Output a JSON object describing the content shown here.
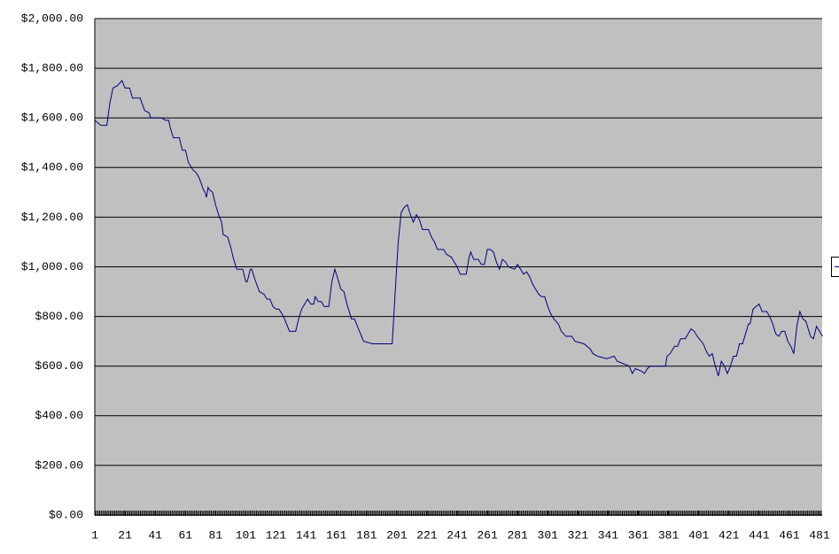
{
  "chart_data": {
    "type": "line",
    "x": [
      1,
      5,
      9,
      11,
      13,
      16,
      19,
      21,
      24,
      26,
      31,
      34,
      37,
      38,
      45,
      48,
      50,
      51,
      53,
      57,
      59,
      61,
      63,
      66,
      68,
      70,
      73,
      74,
      75,
      76,
      77,
      79,
      81,
      83,
      85,
      86,
      89,
      91,
      93,
      95,
      99,
      101,
      102,
      104,
      105,
      107,
      110,
      113,
      115,
      117,
      119,
      121,
      123,
      126,
      128,
      130,
      134,
      136,
      138,
      141,
      142,
      144,
      146,
      147,
      149,
      151,
      153,
      156,
      158,
      160,
      162,
      164,
      166,
      168,
      169,
      171,
      173,
      175,
      177,
      179,
      185,
      190,
      193,
      198,
      200,
      202,
      204,
      206,
      208,
      210,
      212,
      214,
      216,
      218,
      222,
      224,
      226,
      228,
      232,
      234,
      237,
      239,
      241,
      243,
      247,
      249,
      250,
      252,
      255,
      257,
      259,
      261,
      263,
      265,
      267,
      269,
      271,
      273,
      275,
      279,
      281,
      283,
      285,
      287,
      289,
      291,
      293,
      295,
      297,
      299,
      301,
      303,
      305,
      308,
      310,
      313,
      317,
      319,
      325,
      329,
      331,
      334,
      340,
      345,
      347,
      351,
      355,
      357,
      359,
      363,
      365,
      367,
      369,
      379,
      380,
      382,
      385,
      387,
      389,
      392,
      395,
      396,
      398,
      400,
      404,
      406,
      408,
      410,
      412,
      414,
      416,
      418,
      420,
      422,
      424,
      426,
      428,
      430,
      432,
      434,
      435,
      437,
      439,
      441,
      443,
      446,
      448,
      450,
      452,
      454,
      456,
      458,
      460,
      462,
      464,
      466,
      468,
      470,
      472,
      475,
      477,
      479,
      481,
      483
    ],
    "series": [
      {
        "color": "#000080",
        "values": [
          1590,
          1570,
          1570,
          1660,
          1720,
          1730,
          1750,
          1720,
          1720,
          1680,
          1680,
          1630,
          1620,
          1600,
          1600,
          1590,
          1590,
          1560,
          1520,
          1520,
          1470,
          1470,
          1420,
          1390,
          1380,
          1360,
          1310,
          1300,
          1280,
          1320,
          1310,
          1300,
          1250,
          1210,
          1180,
          1130,
          1120,
          1080,
          1030,
          990,
          990,
          940,
          940,
          990,
          990,
          950,
          900,
          890,
          870,
          870,
          840,
          830,
          830,
          800,
          770,
          740,
          740,
          790,
          830,
          860,
          870,
          850,
          850,
          880,
          860,
          860,
          840,
          840,
          940,
          990,
          950,
          910,
          900,
          850,
          830,
          790,
          790,
          760,
          730,
          700,
          690,
          690,
          690,
          690,
          900,
          1100,
          1220,
          1240,
          1250,
          1210,
          1180,
          1210,
          1190,
          1150,
          1150,
          1120,
          1100,
          1070,
          1070,
          1050,
          1040,
          1020,
          1000,
          970,
          970,
          1040,
          1060,
          1030,
          1030,
          1010,
          1010,
          1070,
          1070,
          1060,
          1020,
          990,
          1030,
          1020,
          1000,
          990,
          1010,
          990,
          970,
          980,
          960,
          930,
          910,
          890,
          880,
          880,
          840,
          810,
          790,
          770,
          740,
          720,
          720,
          700,
          690,
          670,
          650,
          640,
          630,
          640,
          620,
          610,
          600,
          570,
          590,
          580,
          570,
          590,
          600,
          600,
          640,
          650,
          680,
          680,
          710,
          710,
          740,
          750,
          740,
          720,
          690,
          660,
          640,
          650,
          600,
          560,
          620,
          600,
          570,
          600,
          640,
          640,
          690,
          690,
          730,
          770,
          770,
          830,
          840,
          850,
          820,
          820,
          800,
          770,
          730,
          720,
          740,
          740,
          700,
          680,
          650,
          760,
          820,
          790,
          780,
          720,
          710,
          760,
          740,
          720
        ]
      }
    ],
    "xlim": [
      1,
      483
    ],
    "xticks": [
      1,
      21,
      41,
      61,
      81,
      101,
      121,
      141,
      161,
      181,
      201,
      221,
      241,
      261,
      281,
      301,
      321,
      341,
      361,
      381,
      401,
      421,
      441,
      461,
      481
    ],
    "ylim": [
      0,
      2000
    ],
    "yticks": [
      {
        "value": 0,
        "label": "$0.00"
      },
      {
        "value": 200,
        "label": "$200.00"
      },
      {
        "value": 400,
        "label": "$400.00"
      },
      {
        "value": 600,
        "label": "$600.00"
      },
      {
        "value": 800,
        "label": "$800.00"
      },
      {
        "value": 1000,
        "label": "$1,000.00"
      },
      {
        "value": 1200,
        "label": "$1,200.00"
      },
      {
        "value": 1400,
        "label": "$1,400.00"
      },
      {
        "value": 1600,
        "label": "$1,600.00"
      },
      {
        "value": 1800,
        "label": "$1,800.00"
      },
      {
        "value": 2000,
        "label": "$2,000.00"
      }
    ],
    "grid": true
  }
}
